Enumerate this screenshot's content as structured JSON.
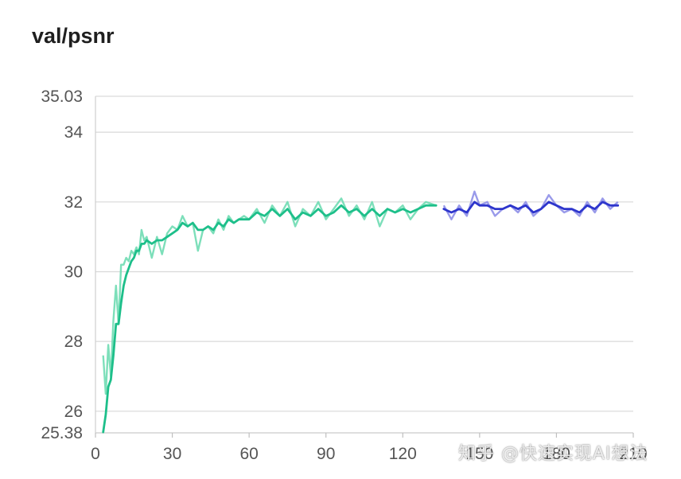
{
  "chart_data": {
    "type": "line",
    "title": "val/psnr",
    "xlim": [
      0,
      210
    ],
    "ylim": [
      25.38,
      35.03
    ],
    "xticks": [
      "0",
      "30",
      "60",
      "90",
      "120",
      "150",
      "180",
      "210"
    ],
    "xtick_values": [
      0,
      30,
      60,
      90,
      120,
      150,
      180,
      210
    ],
    "yticks": [
      "25.38",
      "26",
      "28",
      "30",
      "32",
      "34",
      "35.03"
    ],
    "ytick_values": [
      25.38,
      26,
      28,
      30,
      32,
      34,
      35.03
    ],
    "grid": true,
    "legend": "none",
    "series": [
      {
        "color": "#1dbf8a",
        "raw_color": "#6fdcb3",
        "x": [
          3,
          4,
          5,
          6,
          7,
          8,
          9,
          10,
          11,
          12,
          13,
          14,
          15,
          16,
          17,
          18,
          19,
          20,
          22,
          24,
          26,
          28,
          30,
          32,
          34,
          36,
          38,
          40,
          42,
          44,
          46,
          48,
          50,
          52,
          54,
          56,
          58,
          60,
          63,
          66,
          69,
          72,
          75,
          78,
          81,
          84,
          87,
          90,
          93,
          96,
          99,
          102,
          105,
          108,
          111,
          114,
          117,
          120,
          123,
          126,
          129,
          133
        ],
        "raw": [
          27.6,
          26.5,
          27.9,
          27.0,
          28.6,
          29.6,
          28.5,
          30.2,
          30.2,
          30.4,
          30.3,
          30.6,
          30.5,
          30.7,
          30.5,
          31.2,
          30.9,
          31.0,
          30.4,
          31.0,
          30.5,
          31.1,
          31.3,
          31.2,
          31.6,
          31.3,
          31.4,
          30.6,
          31.2,
          31.3,
          31.1,
          31.5,
          31.2,
          31.6,
          31.4,
          31.5,
          31.6,
          31.5,
          31.8,
          31.4,
          31.9,
          31.6,
          32.0,
          31.3,
          31.8,
          31.6,
          32.0,
          31.5,
          31.8,
          32.1,
          31.6,
          31.9,
          31.5,
          32.0,
          31.3,
          31.8,
          31.7,
          31.9,
          31.5,
          31.8,
          32.0,
          31.9
        ],
        "smoothed": [
          25.4,
          25.9,
          26.7,
          26.9,
          27.6,
          28.5,
          28.5,
          29.1,
          29.6,
          29.9,
          30.1,
          30.3,
          30.4,
          30.6,
          30.6,
          30.8,
          30.8,
          30.9,
          30.8,
          30.9,
          30.9,
          31.0,
          31.1,
          31.2,
          31.4,
          31.3,
          31.4,
          31.2,
          31.2,
          31.3,
          31.2,
          31.4,
          31.3,
          31.5,
          31.4,
          31.5,
          31.5,
          31.5,
          31.7,
          31.6,
          31.8,
          31.6,
          31.8,
          31.5,
          31.7,
          31.6,
          31.8,
          31.6,
          31.7,
          31.9,
          31.7,
          31.8,
          31.6,
          31.8,
          31.6,
          31.8,
          31.7,
          31.8,
          31.7,
          31.8,
          31.9,
          31.9
        ]
      },
      {
        "color": "#2d35cc",
        "raw_color": "#8e8fe8",
        "x": [
          136,
          139,
          142,
          145,
          148,
          150,
          153,
          156,
          159,
          162,
          165,
          168,
          171,
          174,
          177,
          180,
          183,
          186,
          189,
          192,
          195,
          198,
          201,
          204
        ],
        "raw": [
          31.9,
          31.5,
          31.9,
          31.6,
          32.3,
          31.9,
          32.0,
          31.6,
          31.8,
          31.9,
          31.7,
          32.0,
          31.6,
          31.8,
          32.2,
          31.9,
          31.7,
          31.8,
          31.6,
          32.0,
          31.7,
          32.1,
          31.8,
          32.0
        ],
        "smoothed": [
          31.8,
          31.7,
          31.8,
          31.7,
          32.0,
          31.9,
          31.9,
          31.8,
          31.8,
          31.9,
          31.8,
          31.9,
          31.7,
          31.8,
          32.0,
          31.9,
          31.8,
          31.8,
          31.7,
          31.9,
          31.8,
          32.0,
          31.9,
          31.9
        ]
      }
    ]
  },
  "watermark": "知乎 @快速实现AI想法"
}
